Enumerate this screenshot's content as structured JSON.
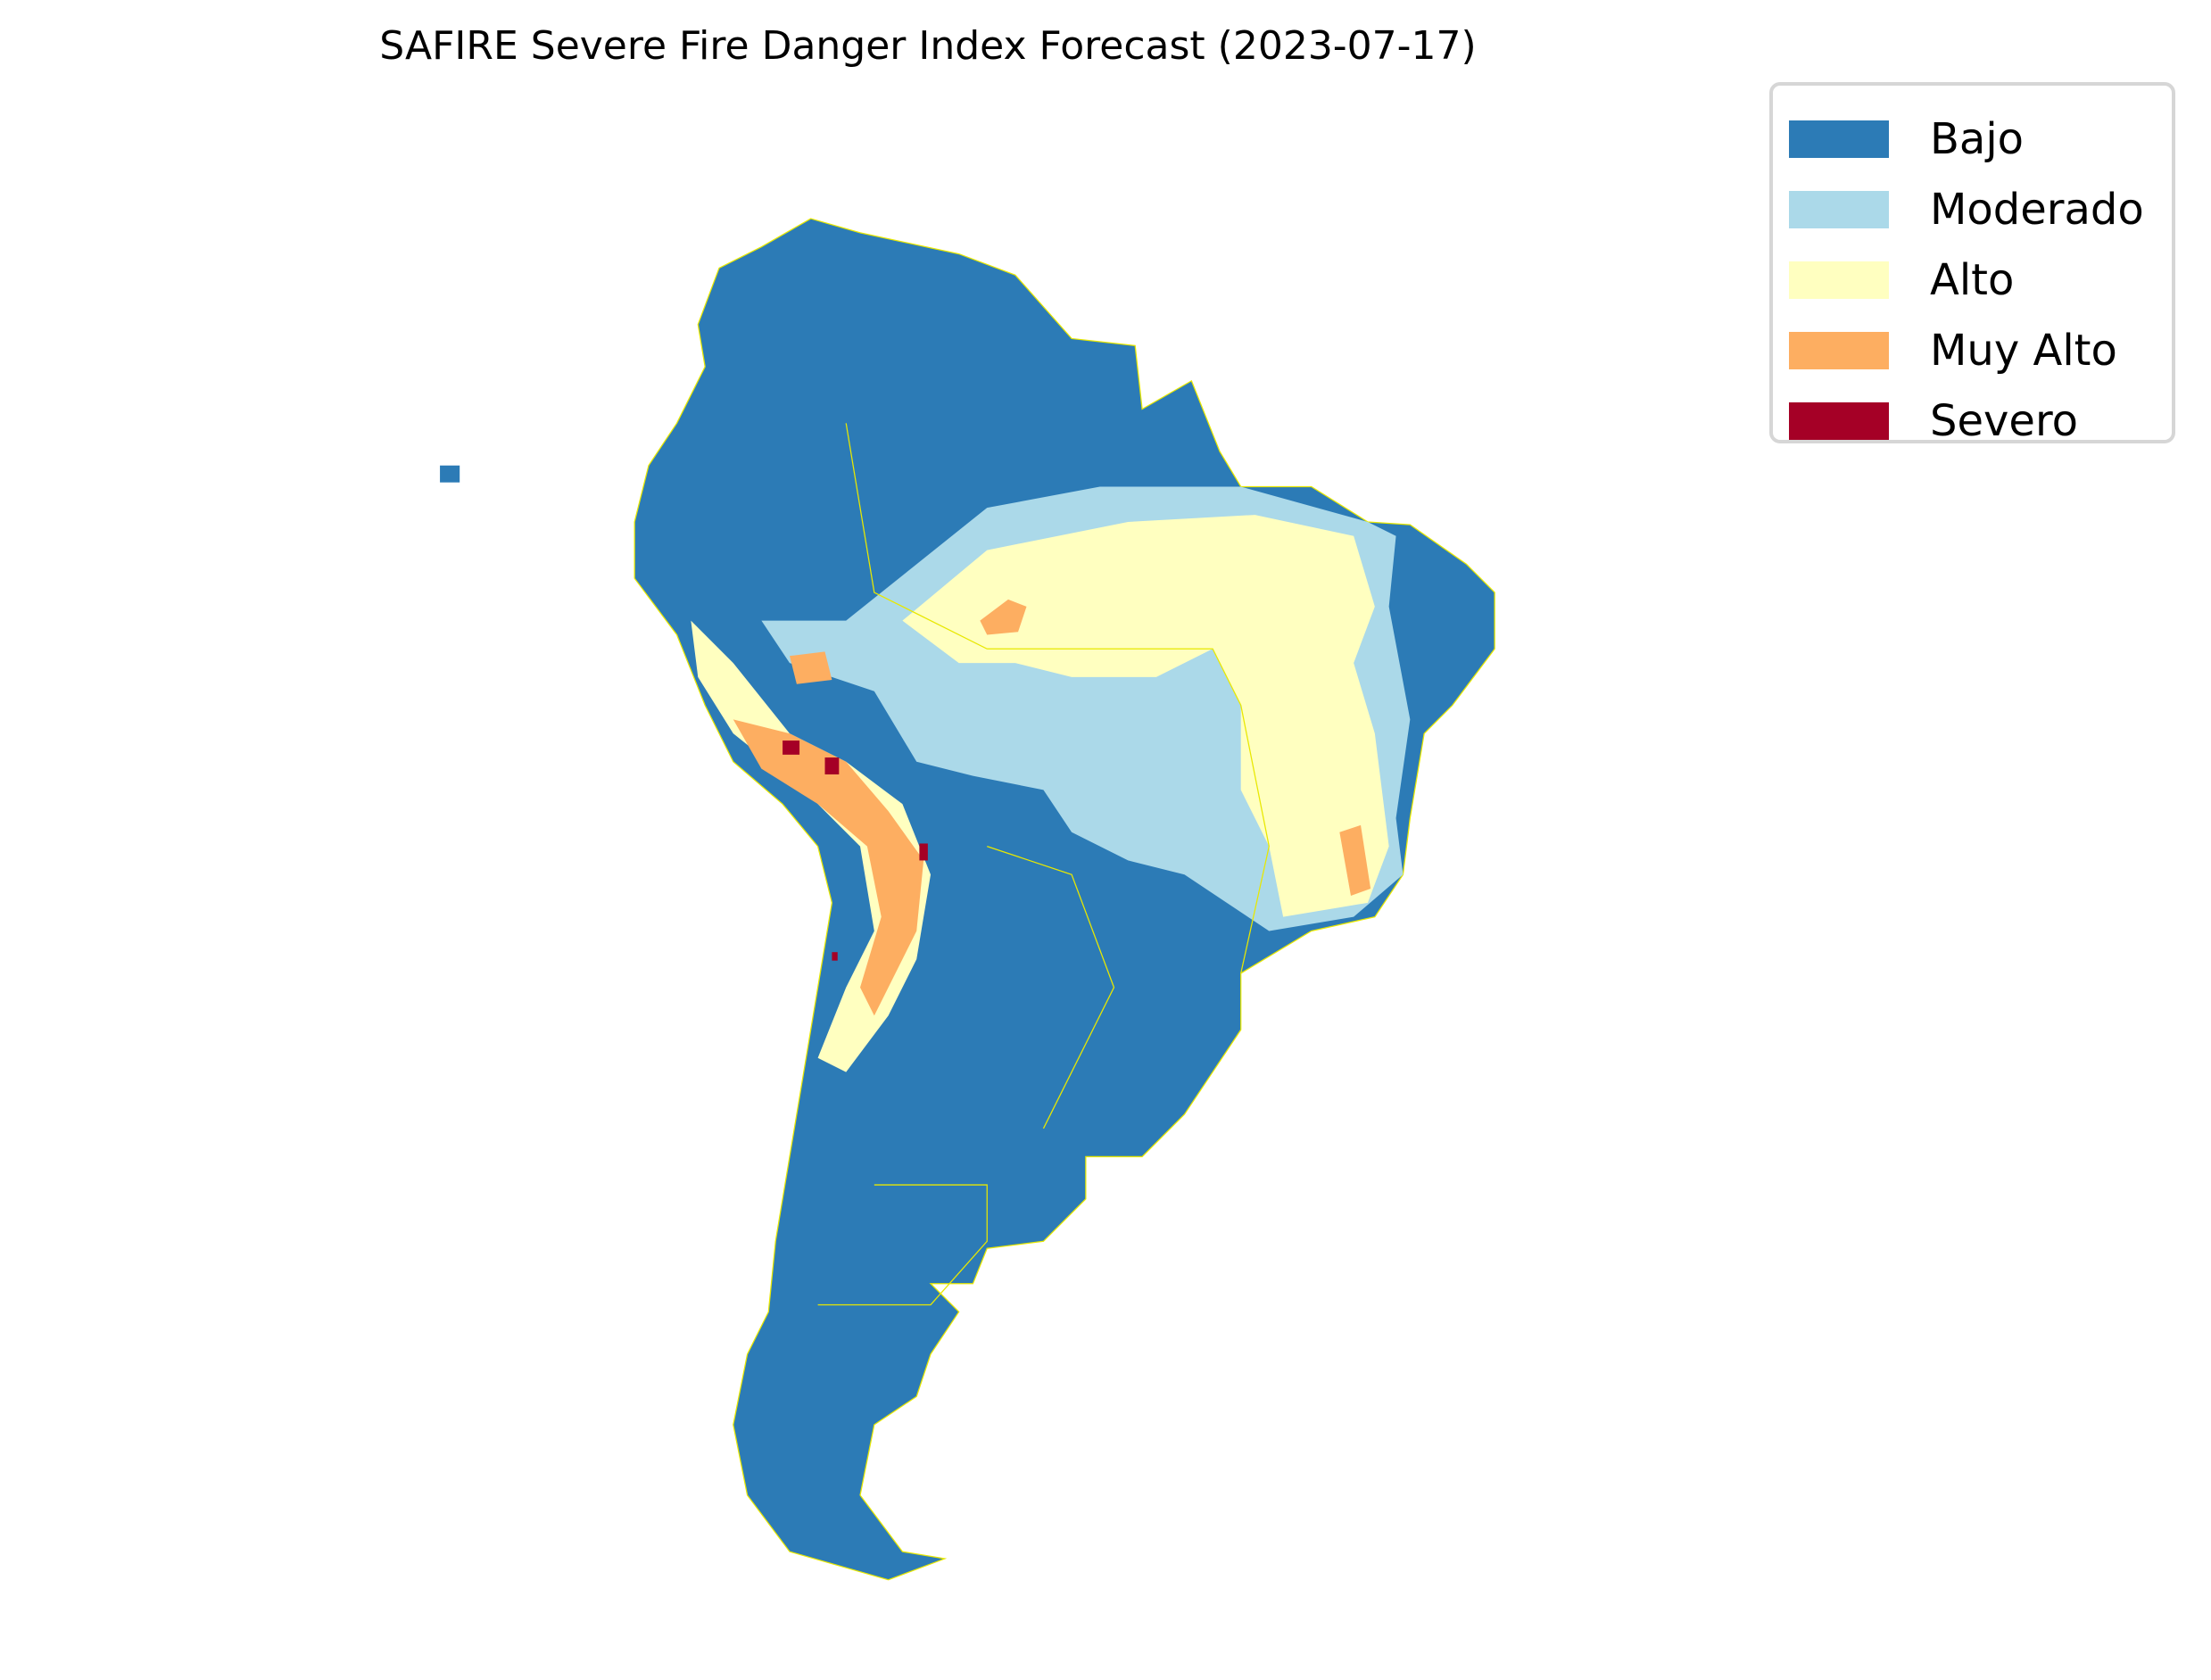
{
  "title": "SAFIRE Severe Fire Danger Index Forecast (2023-07-17)",
  "legend": {
    "placement": "top-right",
    "items": [
      {
        "label": "Bajo",
        "color": "#2c7bb6"
      },
      {
        "label": "Moderado",
        "color": "#abd9e9"
      },
      {
        "label": "Alto",
        "color": "#ffffc0"
      },
      {
        "label": "Muy Alto",
        "color": "#fdae61"
      },
      {
        "label": "Severo",
        "color": "#a50026"
      }
    ]
  },
  "chart_data": {
    "type": "heatmap",
    "title": "SAFIRE Severe Fire Danger Index Forecast (2023-07-17)",
    "region": "South America",
    "categories": [
      "Bajo",
      "Moderado",
      "Alto",
      "Muy Alto",
      "Severo"
    ],
    "border_color": "#ffff00",
    "axes": "off"
  }
}
